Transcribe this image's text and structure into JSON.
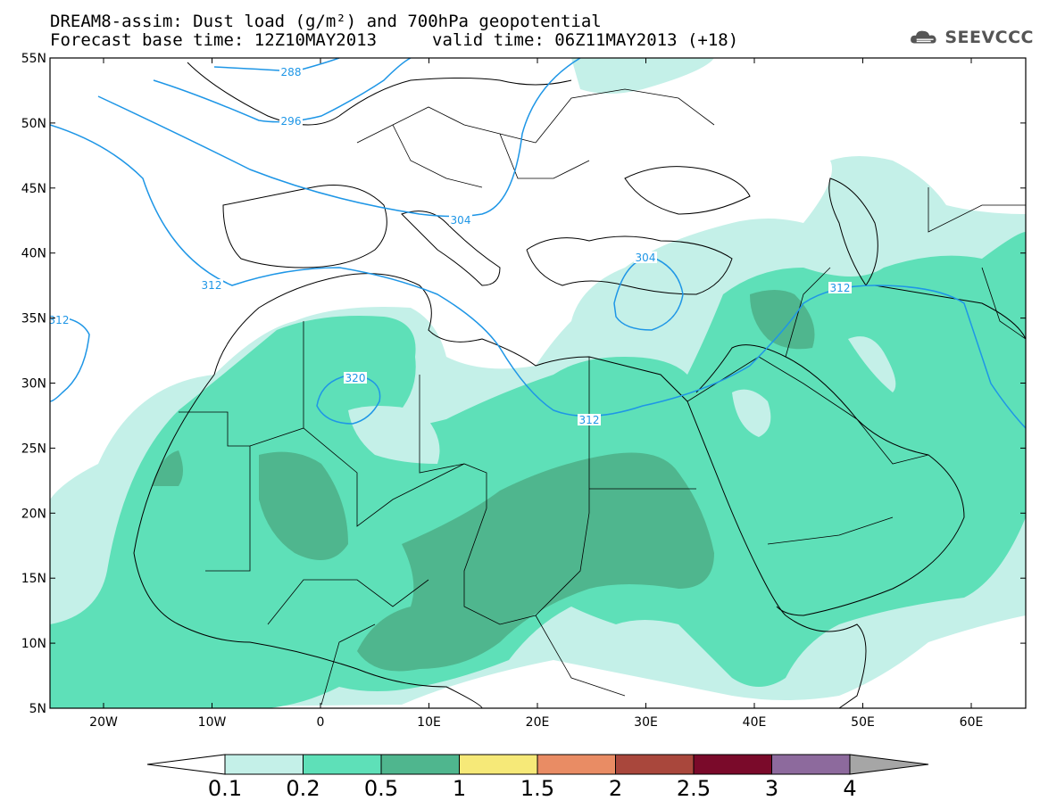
{
  "title": {
    "line1": "DREAM8-assim: Dust load (g/m²) and 700hPa geopotential",
    "line2a": "Forecast base time: 12Z10MAY2013",
    "line2b": "valid time: 06Z11MAY2013 (+18)"
  },
  "logo": {
    "text": "SEEVCCC",
    "icon": "cloud-icon"
  },
  "axes": {
    "lat_labels": [
      "55N",
      "50N",
      "45N",
      "40N",
      "35N",
      "30N",
      "25N",
      "20N",
      "15N",
      "10N",
      "5N"
    ],
    "lon_labels": [
      "20W",
      "10W",
      "0",
      "10E",
      "20E",
      "30E",
      "40E",
      "50E",
      "60E"
    ]
  },
  "contours": {
    "labels": [
      "288",
      "296",
      "304",
      "304",
      "312",
      "312",
      "312",
      "312",
      "320"
    ]
  },
  "colorbar": {
    "labels": [
      "0.1",
      "0.2",
      "0.5",
      "1",
      "1.5",
      "2",
      "2.5",
      "3",
      "4"
    ],
    "colors": [
      "#c4f0e8",
      "#5ee0b8",
      "#4fb68e",
      "#f6e978",
      "#e98c64",
      "#a9473c",
      "#7a0a2a",
      "#8d6a9d"
    ],
    "under_color": "#ffffff",
    "over_color": "#a6a6a6"
  },
  "colors": {
    "contour": "#1e96e6",
    "border": "#000000",
    "dust_low": "#c4f0e8",
    "dust_mid": "#5ee0b8",
    "dust_high": "#4fb68e"
  }
}
